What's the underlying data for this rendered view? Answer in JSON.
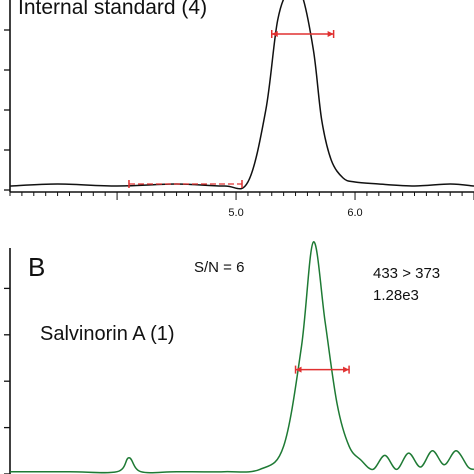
{
  "colors": {
    "trace_a": "#111111",
    "trace_b": "#1e7a34",
    "marker": "#e03030",
    "axis": "#111111"
  },
  "panel_a": {
    "title": "Internal standard (4)"
  },
  "panel_b": {
    "letter": "B",
    "sn_label": "S/N = 6",
    "transition": "433 > 373",
    "intensity": "1.28e3",
    "compound": "Salvinorin A (1)"
  },
  "chart_data": [
    {
      "type": "line",
      "title": "Internal standard (4)",
      "xlabel": "",
      "ylabel": "",
      "x_tick_labels": [
        "5.0",
        "6.0"
      ],
      "xlim": [
        3.1,
        7.0
      ],
      "ylim": [
        0,
        100
      ],
      "series": [
        {
          "x": [
            3.1,
            3.5,
            4.0,
            4.5,
            4.9,
            5.1,
            5.25,
            5.35,
            5.45,
            5.55,
            5.65,
            5.72,
            5.8,
            5.9,
            6.0,
            6.2,
            6.5,
            6.8,
            7.0
          ],
          "y": [
            2,
            3,
            2,
            3,
            2,
            4,
            40,
            85,
            100,
            98,
            70,
            35,
            15,
            6,
            4,
            3,
            2,
            3,
            2
          ]
        }
      ],
      "noise_interval": [
        4.1,
        5.05
      ],
      "peak_width_interval": [
        5.3,
        5.82
      ]
    },
    {
      "type": "line",
      "title": "Salvinorin A (1)",
      "xlabel": "",
      "ylabel": "",
      "xlim": [
        3.1,
        7.0
      ],
      "ylim": [
        0,
        100
      ],
      "series": [
        {
          "x": [
            3.1,
            3.6,
            4.0,
            4.1,
            4.2,
            4.5,
            4.9,
            5.2,
            5.4,
            5.55,
            5.65,
            5.75,
            5.85,
            5.95,
            6.05,
            6.15,
            6.25,
            6.35,
            6.45,
            6.55,
            6.65,
            6.75,
            6.85,
            6.95,
            7.0
          ],
          "y": [
            1,
            1,
            1,
            7,
            1,
            1,
            1,
            2,
            12,
            55,
            100,
            65,
            30,
            12,
            6,
            2,
            8,
            2,
            9,
            3,
            10,
            4,
            10,
            3,
            2
          ]
        }
      ],
      "peak_width_interval": [
        5.5,
        5.95
      ]
    }
  ]
}
